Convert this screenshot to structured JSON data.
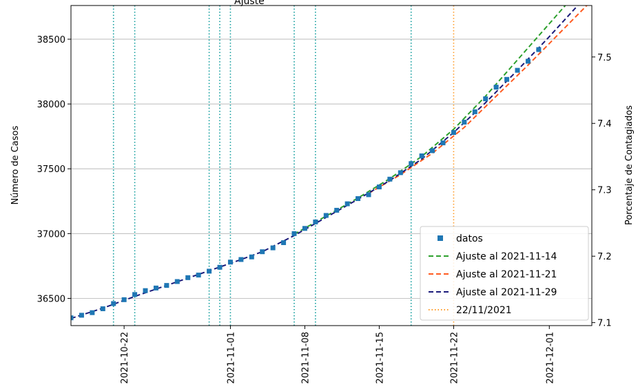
{
  "chart_data": {
    "type": "line",
    "title": "",
    "xlabel": "",
    "ylabel": "Número de Casos",
    "ylabel_right": "Porcentaje de Contagiados",
    "x_type": "date",
    "xlim": [
      "2021-10-17",
      "2021-12-05"
    ],
    "ylim": [
      36290,
      38760
    ],
    "ylim_right": [
      7.0955,
      7.5775
    ],
    "x_ticks": [
      "2021-10-22",
      "2021-11-01",
      "2021-11-08",
      "2021-11-15",
      "2021-11-22",
      "2021-12-01"
    ],
    "y_ticks": [
      36500,
      37000,
      37500,
      38000,
      38500
    ],
    "y_ticks_right": [
      7.1,
      7.2,
      7.3,
      7.4,
      7.5
    ],
    "grid": "horizontal",
    "legend_position": "lower-right",
    "colors": {
      "data": "#1f77b4",
      "fit_1114": "#2ca02c",
      "fit_1121": "#ff5a1f",
      "fit_1129": "#1a1a7a",
      "marker_2211": "#ff9922",
      "event_lines": "#0b9b9b",
      "grid": "#b0b0b0"
    },
    "legend": [
      {
        "label": "datos",
        "kind": "marker",
        "color": "#1f77b4"
      },
      {
        "label": "Ajuste al 2021-11-14",
        "kind": "dashed",
        "color": "#2ca02c"
      },
      {
        "label": "Ajuste al 2021-11-21",
        "kind": "dashed",
        "color": "#ff5a1f"
      },
      {
        "label": "Ajuste al 2021-11-29",
        "kind": "dashed",
        "color": "#1a1a7a"
      },
      {
        "label": "22/11/2021",
        "kind": "dotted",
        "color": "#ff9922"
      }
    ],
    "event_lines": [
      "2021-10-21",
      "2021-10-23",
      "2021-10-30",
      "2021-10-31",
      "2021-11-01",
      "2021-11-07",
      "2021-11-09",
      "2021-11-18"
    ],
    "marker_line": "2021-11-22",
    "series": [
      {
        "name": "datos",
        "kind": "scatter",
        "color": "#1f77b4",
        "x": [
          "2021-10-17",
          "2021-10-18",
          "2021-10-19",
          "2021-10-20",
          "2021-10-21",
          "2021-10-22",
          "2021-10-23",
          "2021-10-24",
          "2021-10-25",
          "2021-10-26",
          "2021-10-27",
          "2021-10-28",
          "2021-10-29",
          "2021-10-30",
          "2021-10-31",
          "2021-11-01",
          "2021-11-02",
          "2021-11-03",
          "2021-11-04",
          "2021-11-05",
          "2021-11-06",
          "2021-11-07",
          "2021-11-08",
          "2021-11-09",
          "2021-11-10",
          "2021-11-11",
          "2021-11-12",
          "2021-11-13",
          "2021-11-14",
          "2021-11-15",
          "2021-11-16",
          "2021-11-17",
          "2021-11-18",
          "2021-11-19",
          "2021-11-20",
          "2021-11-21",
          "2021-11-22",
          "2021-11-23",
          "2021-11-24",
          "2021-11-25",
          "2021-11-26",
          "2021-11-27",
          "2021-11-28",
          "2021-11-29",
          "2021-11-30"
        ],
        "y": [
          36350,
          36370,
          36390,
          36420,
          36460,
          36490,
          36530,
          36560,
          36580,
          36600,
          36630,
          36660,
          36680,
          36710,
          36740,
          36780,
          36800,
          36820,
          36860,
          36890,
          36930,
          37000,
          37040,
          37090,
          37140,
          37180,
          37230,
          37270,
          37300,
          37360,
          37420,
          37470,
          37540,
          37600,
          37640,
          37700,
          37780,
          37860,
          37940,
          38040,
          38130,
          38190,
          38260,
          38330,
          38420
        ]
      },
      {
        "name": "Ajuste al 2021-11-14",
        "kind": "dashed",
        "color": "#2ca02c",
        "x": [
          "2021-11-07",
          "2021-11-10",
          "2021-11-13",
          "2021-11-16",
          "2021-11-19",
          "2021-11-22",
          "2021-11-25",
          "2021-11-28",
          "2021-12-01",
          "2021-12-04"
        ],
        "y": [
          36995,
          37135,
          37275,
          37425,
          37595,
          37805,
          38060,
          38340,
          38620,
          38900
        ]
      },
      {
        "name": "Ajuste al 2021-11-21",
        "kind": "dashed",
        "color": "#ff5a1f",
        "x": [
          "2021-11-14",
          "2021-11-17",
          "2021-11-20",
          "2021-11-23",
          "2021-11-26",
          "2021-11-29",
          "2021-12-02",
          "2021-12-05"
        ],
        "y": [
          37310,
          37455,
          37620,
          37820,
          38060,
          38300,
          38550,
          38800
        ]
      },
      {
        "name": "Ajuste al 2021-11-29",
        "kind": "dashed",
        "color": "#1a1a7a",
        "x": [
          "2021-10-17",
          "2021-10-20",
          "2021-10-23",
          "2021-10-26",
          "2021-10-29",
          "2021-11-01",
          "2021-11-04",
          "2021-11-07",
          "2021-11-10",
          "2021-11-13",
          "2021-11-16",
          "2021-11-19",
          "2021-11-22",
          "2021-11-25",
          "2021-11-28",
          "2021-12-01",
          "2021-12-04"
        ],
        "y": [
          36345,
          36425,
          36515,
          36600,
          36685,
          36770,
          36860,
          36985,
          37125,
          37265,
          37410,
          37575,
          37780,
          38010,
          38260,
          38520,
          38790
        ]
      }
    ]
  }
}
